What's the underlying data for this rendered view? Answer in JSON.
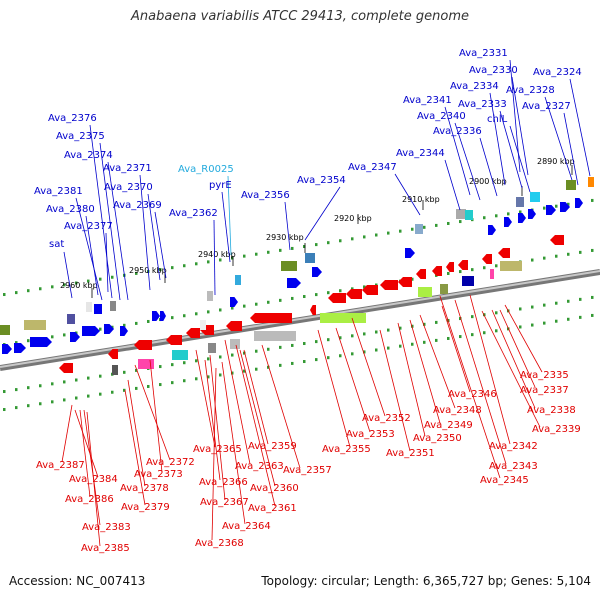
{
  "title": "Anabaena variabilis ATCC 29413, complete genome",
  "footer": {
    "accession": "Accession: NC_007413",
    "summary": "Topology: circular; Length: 6,365,727 bp; Genes: 5,104"
  },
  "colors": {
    "backbone": "#9a9a9a",
    "top_label": "#0000cc",
    "rna_label": "#22aadd",
    "bottom_label": "#e00000",
    "forward_gene": "#0000ee",
    "reverse_gene": "#ee0000",
    "ticks": "#339933"
  },
  "kbp_marks": [
    "2890 kbp",
    "2900 kbp",
    "2910 kbp",
    "2920 kbp",
    "2930 kbp",
    "2940 kbp",
    "2950 kbp",
    "2960 kbp"
  ],
  "top_labels": [
    "Ava_2331",
    "Ava_2330",
    "Ava_2324",
    "Ava_2334",
    "Ava_2328",
    "Ava_2341",
    "Ava_2333",
    "Ava_2327",
    "Ava_2340",
    "chlL",
    "Ava_2336",
    "Ava_2376",
    "Ava_2375",
    "Ava_2374",
    "Ava_2344",
    "Ava_2371",
    "Ava_R0025",
    "Ava_2347",
    "Ava_2370",
    "Ava_2354",
    "pyrE",
    "Ava_2381",
    "Ava_2356",
    "Ava_2369",
    "Ava_2380",
    "Ava_2362",
    "Ava_2377",
    "sat"
  ],
  "bottom_labels": [
    "Ava_2335",
    "Ava_2337",
    "Ava_2346",
    "Ava_2338",
    "Ava_2348",
    "Ava_2352",
    "Ava_2349",
    "Ava_2339",
    "Ava_2353",
    "Ava_2350",
    "Ava_2342",
    "Ava_2355",
    "Ava_2351",
    "Ava_2365",
    "Ava_2359",
    "Ava_2372",
    "Ava_2343",
    "Ava_2387",
    "Ava_2363",
    "Ava_2357",
    "Ava_2373",
    "Ava_2345",
    "Ava_2384",
    "Ava_2366",
    "Ava_2378",
    "Ava_2360",
    "Ava_2386",
    "Ava_2367",
    "Ava_2361",
    "Ava_2379",
    "Ava_2364",
    "Ava_2383",
    "Ava_2368",
    "Ava_2385"
  ]
}
